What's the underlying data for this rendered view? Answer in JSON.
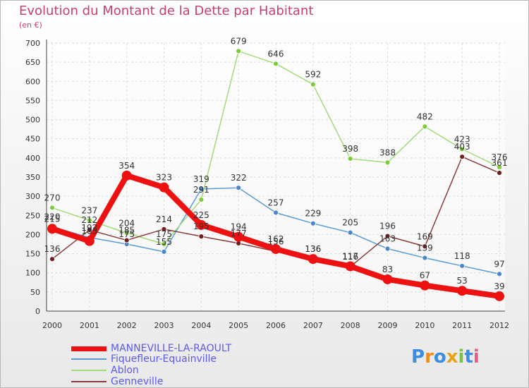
{
  "title": "Evolution du Montant de la Dette par Habitant",
  "subtitle": "(en €)",
  "logo": {
    "letters": [
      "P",
      "r",
      "o",
      "x",
      "i",
      "t",
      "i"
    ],
    "colors": [
      "#3a8de0",
      "#f08a1c",
      "#3a8de0",
      "#e8a21a",
      "#79c043",
      "#3a8de0",
      "#e85a8a"
    ]
  },
  "chart_data": {
    "type": "line",
    "x": [
      2000,
      2001,
      2002,
      2003,
      2004,
      2005,
      2006,
      2007,
      2008,
      2009,
      2010,
      2011,
      2012
    ],
    "xlabels": [
      "2000",
      "2001",
      "2002",
      "2003",
      "2004",
      "2005",
      "2006",
      "2007",
      "2008",
      "2009",
      "2010",
      "2011",
      "2012"
    ],
    "ylim": [
      0,
      700
    ],
    "yticks": [
      0,
      50,
      100,
      150,
      200,
      250,
      300,
      350,
      400,
      450,
      500,
      550,
      600,
      650,
      700
    ],
    "grid": true,
    "legend_placement": "bottom-left",
    "series": [
      {
        "name": "Fiquefleur-Equainville",
        "color": "#5b9bd5",
        "point": "#4a86c8",
        "values": [
          220,
          192,
          175,
          155,
          319,
          322,
          257,
          229,
          205,
          163,
          139,
          118,
          97
        ]
      },
      {
        "name": "Ablon",
        "color": "#a0dc78",
        "point": "#7dcb3c",
        "values": [
          270,
          237,
          204,
          175,
          291,
          679,
          646,
          592,
          398,
          388,
          482,
          423,
          376
        ]
      },
      {
        "name": "Genneville",
        "color": "#8b3a3a",
        "point": "#6e1f1f",
        "values": [
          136,
          212,
          185,
          214,
          195,
          177,
          156,
          136,
          116,
          196,
          169,
          403,
          361
        ]
      },
      {
        "name": "MANNEVILLE-LA-RAOULT",
        "color": "#ee1111",
        "point": "#ee1111",
        "values": [
          215,
          183,
          354,
          323,
          225,
          194,
          162,
          136,
          117,
          83,
          67,
          53,
          39
        ]
      }
    ]
  }
}
